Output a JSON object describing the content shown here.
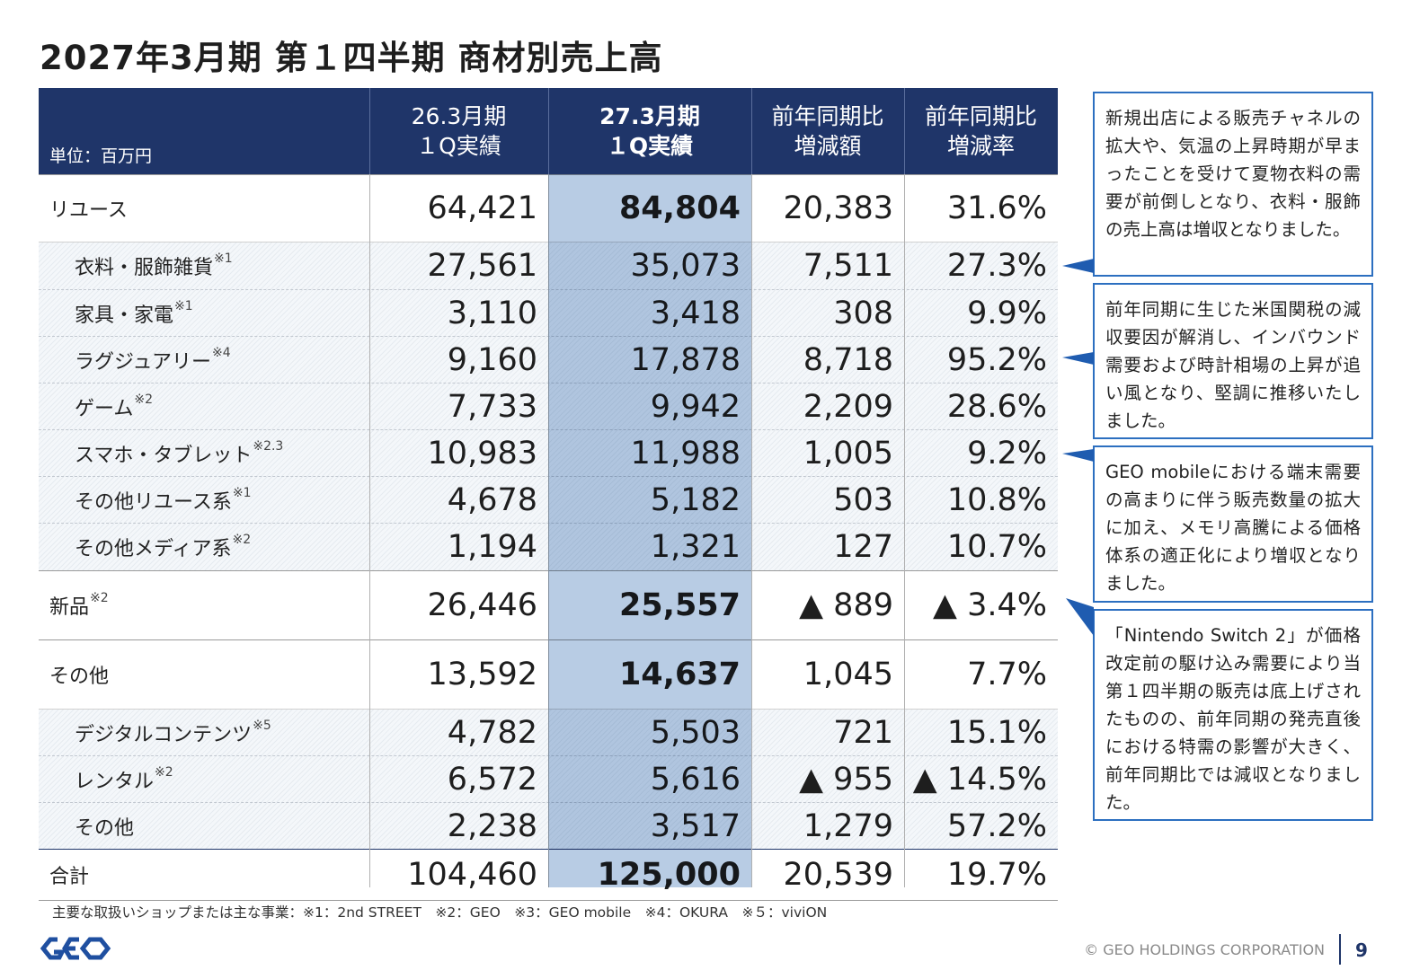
{
  "title": "2027年3月期 第１四半期 商材別売上高",
  "table": {
    "unit": "単位：百万円",
    "columns": [
      {
        "line1": "26.3月期",
        "line2": "１Q実績"
      },
      {
        "line1": "27.3月期",
        "line2": "１Q実績"
      },
      {
        "line1": "前年同期比",
        "line2": "増減額"
      },
      {
        "line1": "前年同期比",
        "line2": "増減率"
      }
    ],
    "rows": [
      {
        "label": "リユース",
        "note": "",
        "v1": "64,421",
        "v2": "84,804",
        "v3": "20,383",
        "v4": "31.6%"
      },
      {
        "label": "衣料・服飾雑貨",
        "note": "※1",
        "v1": "27,561",
        "v2": "35,073",
        "v3": "7,511",
        "v4": "27.3%"
      },
      {
        "label": "家具・家電",
        "note": "※1",
        "v1": "3,110",
        "v2": "3,418",
        "v3": "308",
        "v4": "9.9%"
      },
      {
        "label": "ラグジュアリー",
        "note": "※4",
        "v1": "9,160",
        "v2": "17,878",
        "v3": "8,718",
        "v4": "95.2%"
      },
      {
        "label": "ゲーム",
        "note": "※2",
        "v1": "7,733",
        "v2": "9,942",
        "v3": "2,209",
        "v4": "28.6%"
      },
      {
        "label": "スマホ・タブレット",
        "note": "※2.3",
        "v1": "10,983",
        "v2": "11,988",
        "v3": "1,005",
        "v4": "9.2%"
      },
      {
        "label": "その他リユース系",
        "note": "※1",
        "v1": "4,678",
        "v2": "5,182",
        "v3": "503",
        "v4": "10.8%"
      },
      {
        "label": "その他メディア系",
        "note": "※2",
        "v1": "1,194",
        "v2": "1,321",
        "v3": "127",
        "v4": "10.7%"
      },
      {
        "label": "新品",
        "note": "※2",
        "v1": "26,446",
        "v2": "25,557",
        "v3": "▲ 889",
        "v4": "▲ 3.4%"
      },
      {
        "label": "その他",
        "note": "",
        "v1": "13,592",
        "v2": "14,637",
        "v3": "1,045",
        "v4": "7.7%"
      },
      {
        "label": "デジタルコンテンツ",
        "note": "※5",
        "v1": "4,782",
        "v2": "5,503",
        "v3": "721",
        "v4": "15.1%"
      },
      {
        "label": "レンタル",
        "note": "※2",
        "v1": "6,572",
        "v2": "5,616",
        "v3": "▲ 955",
        "v4": "▲ 14.5%"
      },
      {
        "label": "その他",
        "note": "",
        "v1": "2,238",
        "v2": "3,517",
        "v3": "1,279",
        "v4": "57.2%"
      },
      {
        "label": "合計",
        "note": "",
        "v1": "104,460",
        "v2": "125,000",
        "v3": "20,539",
        "v4": "19.7%"
      }
    ]
  },
  "footnote": "主要な取扱いショップまたは主な事業：※1：2nd STREET　※2：GEO　※3：GEO mobile　※4：OKURA　※５：viviON",
  "callouts": [
    "新規出店による販売チャネルの拡大や、気温の上昇時期が早まったことを受けて夏物衣料の需要が前倒しとなり、衣料・服飾の売上高は増収となりました。",
    "前年同期に生じた米国関税の減収要因が解消し、インバウンド需要および時計相場の上昇が追い風となり、堅調に推移いたしました。",
    "GEO mobileにおける端末需要の高まりに伴う販売数量の拡大に加え、メモリ高騰による価格体系の適正化により増収となりました。",
    "「Nintendo Switch 2」が価格改定前の駆け込み需要により当第１四半期の販売は底上げされたものの、前年同期の発売直後における特需の影響が大きく、前年同期比では減収となりました。"
  ],
  "copyright": "© GEO HOLDINGS CORPORATION",
  "page_number": "9",
  "colors": {
    "header": "#1f3569",
    "highlight": "#b8cce4",
    "callout_border": "#2c6fc0"
  }
}
